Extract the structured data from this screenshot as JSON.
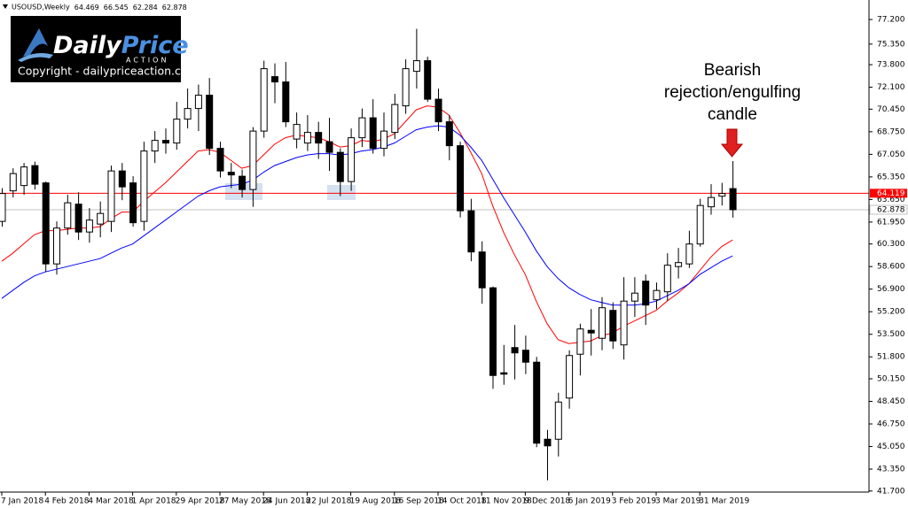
{
  "header": {
    "symbol": "USOUSD,Weekly"
  },
  "watermark": {
    "brand_1": "Daily",
    "brand_2": "Price",
    "tagline": "ACTION",
    "copyright": "Copyright - dailypriceaction.com"
  },
  "chart_data": {
    "type": "candlestick",
    "categories": [
      "7 Jan 2018",
      null,
      null,
      null,
      "4 Feb 2018",
      null,
      null,
      null,
      "4 Mar 2018",
      null,
      null,
      null,
      "1 Apr 2018",
      null,
      null,
      null,
      "29 Apr 2018",
      null,
      null,
      null,
      "27 May 2018",
      null,
      null,
      null,
      "24 Jun 2018",
      null,
      null,
      null,
      "22 Jul 2018",
      null,
      null,
      null,
      "19 Aug 2018",
      null,
      null,
      null,
      "16 Sep 2018",
      null,
      null,
      null,
      "14 Oct 2018",
      null,
      null,
      null,
      "11 Nov 2018",
      null,
      null,
      null,
      "9 Dec 2018",
      null,
      null,
      null,
      "6 Jan 2019",
      null,
      null,
      null,
      "3 Feb 2019",
      null,
      null,
      null,
      "3 Mar 2019",
      null,
      null,
      null,
      "31 Mar 2019",
      null,
      null,
      null
    ],
    "open": [
      62.0,
      64.3,
      64.7,
      66.2,
      64.9,
      58.8,
      61.5,
      63.3,
      61.2,
      61.8,
      62.0,
      65.8,
      64.9,
      62.0,
      67.3,
      68.1,
      67.9,
      69.7,
      70.5,
      71.5,
      67.5,
      65.7,
      65.4,
      64.4,
      68.8,
      72.9,
      72.5,
      68.2,
      67.9,
      68.7,
      68.0,
      67.2,
      65.0,
      68.3,
      69.8,
      67.5,
      68.7,
      70.7,
      73.3,
      74.1,
      71.2,
      69.5,
      67.7,
      62.8,
      59.7,
      57.0,
      50.6,
      52.5,
      52.3,
      51.4,
      45.6,
      45.6,
      48.7,
      52.0,
      53.8,
      53.2,
      55.3,
      52.7,
      56.0,
      57.5,
      56.1,
      56.7,
      58.6,
      58.8,
      60.3,
      63.1,
      63.9,
      64.469
    ],
    "high": [
      64.5,
      66.0,
      66.4,
      66.5,
      65.0,
      62.0,
      64.0,
      64.2,
      63.0,
      63.5,
      66.2,
      66.4,
      65.4,
      68.0,
      68.8,
      69.0,
      71.0,
      72.0,
      72.3,
      72.8,
      68.0,
      66.4,
      65.9,
      69.1,
      74.1,
      73.9,
      74.0,
      70.2,
      70.0,
      69.5,
      69.8,
      67.5,
      69.0,
      70.5,
      71.2,
      70.2,
      71.6,
      74.2,
      76.5,
      74.4,
      72.0,
      70.0,
      68.0,
      63.7,
      60.5,
      57.1,
      52.7,
      54.2,
      53.4,
      51.8,
      46.3,
      49.1,
      52.3,
      54.3,
      55.4,
      56.3,
      55.9,
      57.8,
      57.8,
      58.0,
      57.4,
      59.6,
      60.0,
      61.3,
      63.7,
      64.8,
      64.9,
      66.545
    ],
    "low": [
      61.6,
      63.8,
      64.0,
      64.4,
      58.2,
      58.0,
      61.0,
      60.6,
      60.4,
      60.8,
      61.2,
      63.6,
      61.6,
      61.3,
      66.4,
      67.1,
      67.4,
      69.0,
      68.8,
      67.0,
      65.3,
      64.5,
      63.8,
      63.1,
      68.3,
      70.9,
      69.1,
      67.5,
      67.3,
      66.7,
      65.8,
      63.9,
      64.3,
      67.6,
      67.1,
      66.9,
      68.2,
      70.1,
      72.0,
      71.0,
      68.8,
      66.6,
      62.3,
      59.0,
      55.8,
      49.4,
      49.7,
      50.1,
      50.5,
      45.0,
      42.5,
      44.3,
      47.9,
      50.4,
      51.9,
      52.3,
      52.4,
      51.6,
      54.8,
      54.2,
      55.4,
      56.0,
      57.7,
      58.5,
      60.1,
      62.5,
      63.2,
      62.284
    ],
    "close": [
      64.1,
      65.6,
      66.1,
      64.8,
      58.8,
      61.5,
      63.4,
      61.2,
      62.1,
      62.6,
      65.8,
      64.6,
      61.9,
      67.3,
      68.1,
      67.9,
      69.7,
      70.5,
      71.5,
      67.5,
      65.8,
      65.5,
      64.4,
      68.8,
      73.5,
      72.5,
      69.5,
      69.3,
      68.7,
      67.9,
      67.2,
      65.0,
      68.3,
      69.8,
      67.5,
      68.8,
      70.8,
      73.5,
      74.1,
      71.2,
      69.5,
      67.7,
      62.8,
      59.7,
      57.0,
      50.4,
      50.5,
      52.1,
      51.4,
      45.3,
      45.1,
      48.4,
      51.9,
      53.9,
      53.6,
      55.5,
      53.0,
      56.0,
      56.6,
      55.7,
      56.8,
      58.7,
      58.9,
      60.3,
      63.2,
      63.8,
      64.1,
      62.878
    ],
    "moving_averages": [
      {
        "color": "#ff0000",
        "values": [
          59.0,
          59.6,
          60.3,
          61.0,
          61.3,
          61.3,
          61.4,
          61.5,
          61.5,
          61.6,
          62.2,
          62.7,
          62.7,
          63.5,
          64.2,
          64.9,
          65.7,
          66.5,
          67.3,
          67.4,
          67.2,
          66.6,
          66.0,
          66.2,
          67.0,
          67.8,
          68.3,
          68.5,
          68.4,
          68.3,
          68.0,
          67.6,
          67.7,
          68.1,
          68.0,
          68.2,
          68.6,
          69.5,
          70.4,
          70.7,
          70.6,
          70.0,
          68.7,
          67.2,
          65.6,
          63.2,
          61.2,
          59.5,
          58.0,
          56.0,
          54.3,
          53.1,
          52.8,
          52.9,
          53.0,
          53.4,
          53.6,
          54.1,
          54.5,
          54.9,
          55.3,
          56.0,
          56.6,
          57.3,
          58.3,
          59.3,
          60.1,
          60.6
        ]
      },
      {
        "color": "#0000ff",
        "values": [
          56.2,
          56.8,
          57.4,
          57.9,
          58.2,
          58.4,
          58.6,
          58.8,
          59.0,
          59.2,
          59.6,
          60.0,
          60.3,
          60.9,
          61.5,
          62.1,
          62.7,
          63.3,
          63.9,
          64.3,
          64.6,
          64.7,
          64.8,
          65.1,
          65.7,
          66.2,
          66.5,
          66.8,
          67.0,
          67.1,
          67.1,
          67.0,
          67.1,
          67.3,
          67.4,
          67.6,
          67.9,
          68.4,
          68.9,
          69.1,
          69.2,
          69.1,
          68.5,
          67.6,
          66.6,
          65.2,
          63.8,
          62.5,
          61.2,
          59.8,
          58.6,
          57.7,
          57.0,
          56.5,
          56.1,
          55.9,
          55.7,
          55.7,
          55.7,
          55.8,
          56.0,
          56.4,
          56.8,
          57.3,
          58.0,
          58.5,
          59.0,
          59.4
        ]
      }
    ],
    "level_line": {
      "value": 64.119,
      "color": "#ff0000"
    },
    "ylim": [
      41.62,
      78.67
    ],
    "yticks": [
      {
        "value": 77.2,
        "label": "77.200"
      },
      {
        "value": 75.35,
        "label": "75.350"
      },
      {
        "value": 73.8,
        "label": "73.800"
      },
      {
        "value": 72.1,
        "label": "72.100"
      },
      {
        "value": 70.45,
        "label": "70.450"
      },
      {
        "value": 68.75,
        "label": "68.750"
      },
      {
        "value": 67.05,
        "label": "67.050"
      },
      {
        "value": 65.35,
        "label": "65.350"
      },
      {
        "value": 63.65,
        "label": "63.650"
      },
      {
        "value": 61.95,
        "label": "61.950"
      },
      {
        "value": 60.3,
        "label": "60.300"
      },
      {
        "value": 58.6,
        "label": "58.600"
      },
      {
        "value": 56.9,
        "label": "56.900"
      },
      {
        "value": 55.2,
        "label": "55.200"
      },
      {
        "value": 53.5,
        "label": "53.500"
      },
      {
        "value": 51.8,
        "label": "51.800"
      },
      {
        "value": 50.15,
        "label": "50.150"
      },
      {
        "value": 48.45,
        "label": "48.450"
      },
      {
        "value": 46.75,
        "label": "46.750"
      },
      {
        "value": 45.05,
        "label": "45.050"
      },
      {
        "value": 43.35,
        "label": "43.350"
      },
      {
        "value": 41.7,
        "label": "41.700"
      }
    ],
    "annotation": [
      "Bearish",
      "rejection/engulfing",
      "candle"
    ]
  }
}
